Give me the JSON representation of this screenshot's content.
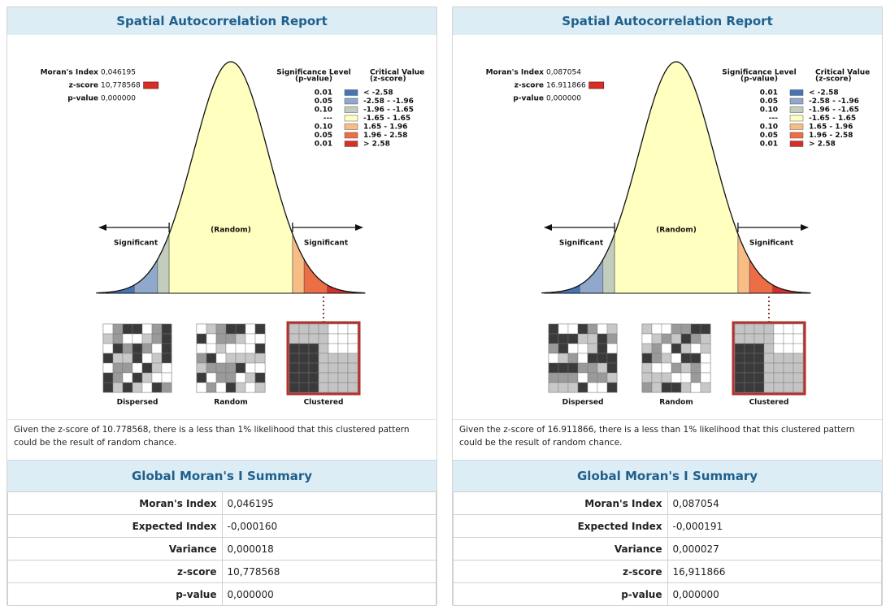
{
  "panels": [
    {
      "title": "Spatial Autocorrelation Report",
      "stats": [
        {
          "label": "Moran's Index",
          "value": "0,046195"
        },
        {
          "label": "z-score",
          "value": "10,778568"
        },
        {
          "label": "p-value",
          "value": "0,000000"
        }
      ],
      "legend": {
        "sig_header": [
          "Significance Level",
          "(p-value)"
        ],
        "crit_header": [
          "Critical Value",
          "(z-score)"
        ],
        "rows": [
          [
            "0.01",
            "< -2.58"
          ],
          [
            "0.05",
            "-2.58 - -1.96"
          ],
          [
            "0.10",
            "-1.96 - -1.65"
          ],
          [
            "---",
            "-1.65 - 1.65"
          ],
          [
            "0.10",
            "1.65 - 1.96"
          ],
          [
            "0.05",
            "1.96 - 2.58"
          ],
          [
            "0.01",
            "> 2.58"
          ]
        ]
      },
      "curve_labels": {
        "random": "(Random)",
        "left": "Significant",
        "right": "Significant"
      },
      "maps": [
        "Dispersed",
        "Random",
        "Clustered"
      ],
      "note": "Given the z-score of 10.778568, there is a less than 1% likelihood that this clustered pattern could be the result of random chance.",
      "summary": {
        "title": "Global Moran's I Summary",
        "rows": [
          [
            "Moran's Index",
            "0,046195"
          ],
          [
            "Expected Index",
            "-0,000160"
          ],
          [
            "Variance",
            "0,000018"
          ],
          [
            "z-score",
            "10,778568"
          ],
          [
            "p-value",
            "0,000000"
          ]
        ]
      }
    },
    {
      "title": "Spatial Autocorrelation Report",
      "stats": [
        {
          "label": "Moran's Index",
          "value": "0,087054"
        },
        {
          "label": "z-score",
          "value": "16.911866"
        },
        {
          "label": "p-value",
          "value": "0,000000"
        }
      ],
      "legend": {
        "sig_header": [
          "Significance Level",
          "(p-value)"
        ],
        "crit_header": [
          "Critical Value",
          "(z-score)"
        ],
        "rows": [
          [
            "0.01",
            "< -2.58"
          ],
          [
            "0.05",
            "-2.58 - -1.96"
          ],
          [
            "0.10",
            "-1.96 - -1.65"
          ],
          [
            "---",
            "-1.65 - 1.65"
          ],
          [
            "0.10",
            "1.65 - 1.96"
          ],
          [
            "0.05",
            "1.96 - 2.58"
          ],
          [
            "0.01",
            "> 2.58"
          ]
        ]
      },
      "curve_labels": {
        "random": "(Random)",
        "left": "Significant",
        "right": "Significant"
      },
      "maps": [
        "Dispersed",
        "Random",
        "Clustered"
      ],
      "note": "Given the z-score of 16.911866, there is a less than 1% likelihood that this clustered pattern could be the result of random chance.",
      "summary": {
        "title": "Global Moran's I Summary",
        "rows": [
          [
            "Moran's Index",
            "0,087054"
          ],
          [
            "Expected Index",
            "-0,000191"
          ],
          [
            "Variance",
            "0,000027"
          ],
          [
            "z-score",
            "16,911866"
          ],
          [
            "p-value",
            "0,000000"
          ]
        ]
      }
    }
  ]
}
